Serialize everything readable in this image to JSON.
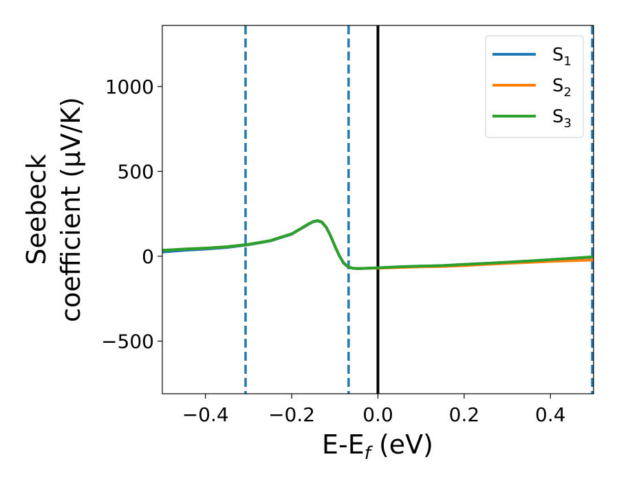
{
  "chart_data": {
    "type": "line",
    "xlabel": "E-E",
    "xlabel_sub": "f",
    "xlabel_unit": " (eV)",
    "ylabel_line1": "Seebeck",
    "ylabel_line2": "coefficient  (μV/K)",
    "xlim": [
      -0.5,
      0.5
    ],
    "ylim": [
      -810,
      1360
    ],
    "x_ticks": [
      -0.4,
      -0.2,
      0.0,
      0.2,
      0.4
    ],
    "x_tick_labels": [
      "−0.4",
      "−0.2",
      "0.0",
      "0.2",
      "0.4"
    ],
    "y_ticks": [
      -500,
      0,
      500,
      1000
    ],
    "y_tick_labels": [
      "−500",
      "0",
      "500",
      "1000"
    ],
    "grid": false,
    "legend_position": "top-right",
    "vlines": [
      {
        "x": -0.307,
        "style": "dashed",
        "color": "#1f77b4"
      },
      {
        "x": -0.068,
        "style": "dashed",
        "color": "#1f77b4"
      },
      {
        "x": 0.0,
        "style": "solid",
        "color": "#000000"
      },
      {
        "x": 0.497,
        "style": "dashed",
        "color": "#1f77b4"
      }
    ],
    "series": [
      {
        "name": "S",
        "sub": "1",
        "color": "#1f77b4",
        "x": [
          -0.5,
          -0.45,
          -0.4,
          -0.35,
          -0.3,
          -0.25,
          -0.2,
          -0.18,
          -0.16,
          -0.15,
          -0.14,
          -0.13,
          -0.12,
          -0.11,
          -0.1,
          -0.09,
          -0.08,
          -0.07,
          -0.06,
          -0.05,
          -0.04,
          -0.02,
          0.0,
          0.05,
          0.1,
          0.15,
          0.2,
          0.25,
          0.3,
          0.35,
          0.4,
          0.45,
          0.5
        ],
        "y": [
          25,
          35,
          42,
          52,
          68,
          90,
          130,
          160,
          190,
          203,
          208,
          200,
          170,
          120,
          60,
          5,
          -40,
          -62,
          -70,
          -72,
          -72,
          -70,
          -68,
          -62,
          -58,
          -55,
          -48,
          -42,
          -35,
          -28,
          -20,
          -12,
          -5
        ]
      },
      {
        "name": "S",
        "sub": "2",
        "color": "#ff7f0e",
        "x": [
          -0.5,
          -0.45,
          -0.4,
          -0.35,
          -0.3,
          -0.25,
          -0.2,
          -0.18,
          -0.16,
          -0.15,
          -0.14,
          -0.13,
          -0.12,
          -0.11,
          -0.1,
          -0.09,
          -0.08,
          -0.07,
          -0.06,
          -0.05,
          -0.04,
          -0.02,
          0.0,
          0.05,
          0.1,
          0.15,
          0.2,
          0.25,
          0.3,
          0.35,
          0.4,
          0.45,
          0.5
        ],
        "y": [
          35,
          42,
          48,
          56,
          70,
          92,
          132,
          162,
          192,
          205,
          210,
          202,
          172,
          122,
          62,
          6,
          -38,
          -60,
          -70,
          -72,
          -72,
          -70,
          -70,
          -66,
          -62,
          -60,
          -55,
          -48,
          -42,
          -36,
          -30,
          -26,
          -22
        ]
      },
      {
        "name": "S",
        "sub": "3",
        "color": "#2ca02c",
        "x": [
          -0.5,
          -0.45,
          -0.4,
          -0.35,
          -0.3,
          -0.25,
          -0.2,
          -0.18,
          -0.16,
          -0.15,
          -0.14,
          -0.13,
          -0.12,
          -0.11,
          -0.1,
          -0.09,
          -0.08,
          -0.07,
          -0.06,
          -0.05,
          -0.04,
          -0.02,
          0.0,
          0.05,
          0.1,
          0.15,
          0.2,
          0.25,
          0.3,
          0.35,
          0.4,
          0.45,
          0.5
        ],
        "y": [
          35,
          42,
          48,
          56,
          70,
          92,
          132,
          162,
          192,
          205,
          210,
          202,
          172,
          122,
          62,
          6,
          -38,
          -60,
          -70,
          -72,
          -72,
          -70,
          -68,
          -62,
          -58,
          -55,
          -48,
          -42,
          -35,
          -28,
          -20,
          -12,
          -3
        ]
      }
    ]
  }
}
